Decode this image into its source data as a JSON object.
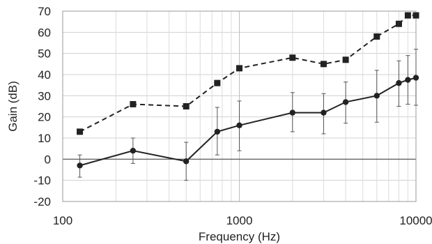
{
  "chart_data": {
    "type": "line",
    "title": "",
    "xlabel": "Frequency (Hz)",
    "ylabel": "Gain (dB)",
    "x_scale": "log",
    "xlim": [
      100,
      10000
    ],
    "ylim": [
      -20,
      70
    ],
    "x_ticks": [
      100,
      1000,
      10000
    ],
    "x_tick_labels": [
      "100",
      "1000",
      "10000"
    ],
    "y_ticks": [
      -20,
      -10,
      0,
      10,
      20,
      30,
      40,
      50,
      60,
      70
    ],
    "y_tick_labels": [
      "-20",
      "-10",
      "0",
      "10",
      "20",
      "30",
      "40",
      "50",
      "60",
      "70"
    ],
    "grid": true,
    "legend": "none",
    "series": [
      {
        "style": "dashed",
        "marker": "square",
        "color": "#222222",
        "x": [
          125,
          250,
          500,
          750,
          1000,
          2000,
          3000,
          4000,
          6000,
          8000,
          9000,
          10000
        ],
        "y": [
          13,
          26,
          25,
          36,
          43,
          48,
          45,
          47,
          58,
          64,
          68,
          68
        ]
      },
      {
        "style": "solid",
        "marker": "circle",
        "color": "#222222",
        "x": [
          125,
          250,
          500,
          750,
          1000,
          2000,
          3000,
          4000,
          6000,
          8000,
          9000,
          10000
        ],
        "y": [
          -3,
          4,
          -1,
          13,
          16,
          22,
          22,
          27,
          30,
          36,
          37.5,
          38.5
        ],
        "error_low": [
          -8.5,
          -2,
          -10,
          2,
          4,
          13,
          12,
          17,
          17.5,
          25,
          26,
          25.5
        ],
        "error_high": [
          2,
          10,
          8,
          24.5,
          27.5,
          31.5,
          31,
          36.5,
          42,
          46.5,
          49,
          52
        ]
      }
    ]
  }
}
